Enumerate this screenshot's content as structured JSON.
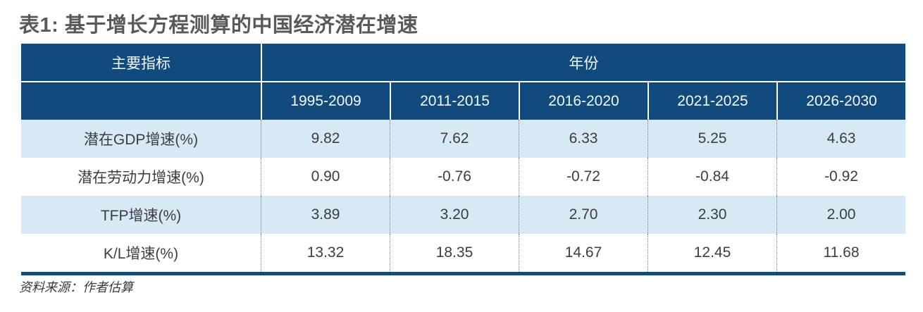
{
  "title": "表1: 基于增长方程测算的中国经济潜在增速",
  "source_note": "资料来源：作者估算",
  "colors": {
    "header_bg": "#114B7E",
    "header_text": "#F4F8FB",
    "row_alt_bg": "#D6E9F5",
    "row_bg": "#FFFFFF",
    "body_text": "#3C3D3F",
    "title_text": "#58595D",
    "dotted_divider": "#7E7E7E",
    "bottom_border": "#114B7E"
  },
  "chart_data": {
    "type": "table",
    "title": "表1: 基于增长方程测算的中国经济潜在增速",
    "corner_header": "主要指标",
    "column_group_header": "年份",
    "columns": [
      "1995-2009",
      "2011-2015",
      "2016-2020",
      "2021-2025",
      "2026-2030"
    ],
    "rows": [
      {
        "label": "潜在GDP增速(%)",
        "values": [
          "9.82",
          "7.62",
          "6.33",
          "5.25",
          "4.63"
        ]
      },
      {
        "label": "潜在劳动力增速(%)",
        "values": [
          "0.90",
          "-0.76",
          "-0.72",
          "-0.84",
          "-0.92"
        ]
      },
      {
        "label": "TFP增速(%)",
        "values": [
          "3.89",
          "3.20",
          "2.70",
          "2.30",
          "2.00"
        ]
      },
      {
        "label": "K/L增速(%)",
        "values": [
          "13.32",
          "18.35",
          "14.67",
          "12.45",
          "11.68"
        ]
      }
    ],
    "source": "资料来源：作者估算",
    "layout": {
      "grid": "off",
      "striped_rows": true,
      "header_span": "年份 spans all 5 year columns"
    }
  }
}
